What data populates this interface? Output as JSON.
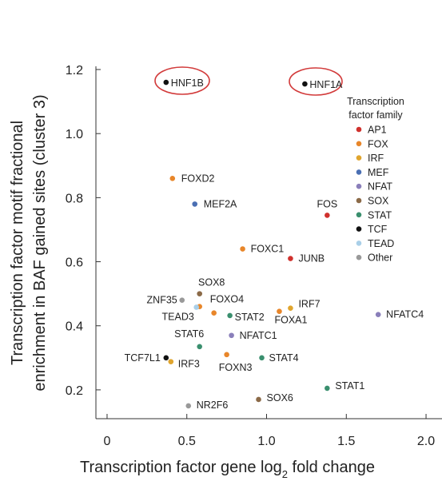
{
  "chart_data": {
    "type": "scatter",
    "xlabel_main": "Transcription factor gene log",
    "xlabel_sub": "2",
    "xlabel_tail": " fold change",
    "ylabel_line1": "Transcription factor motif fractional",
    "ylabel_line2": "enrichment in BAF gained sites (cluster 3)",
    "xlim": [
      -0.07,
      2.1
    ],
    "ylim": [
      0.11,
      1.21
    ],
    "x_ticks": [
      {
        "value": 0,
        "label": "0"
      },
      {
        "value": 0.5,
        "label": "0.5"
      },
      {
        "value": 1.0,
        "label": "1.0"
      },
      {
        "value": 1.5,
        "label": "1.5"
      },
      {
        "value": 2.0,
        "label": "2.0"
      }
    ],
    "y_ticks": [
      {
        "value": 0.2,
        "label": "0.2"
      },
      {
        "value": 0.4,
        "label": "0.4"
      },
      {
        "value": 0.6,
        "label": "0.6"
      },
      {
        "value": 0.8,
        "label": "0.8"
      },
      {
        "value": 1.0,
        "label": "1.0"
      },
      {
        "value": 1.2,
        "label": "1.2"
      }
    ],
    "legend": {
      "title_line1": "Transcription",
      "title_line2": "factor family",
      "position": "right",
      "entries": [
        {
          "family": "AP1",
          "color": "#d0312d"
        },
        {
          "family": "FOX",
          "color": "#e8862a"
        },
        {
          "family": "IRF",
          "color": "#e0a52e"
        },
        {
          "family": "MEF",
          "color": "#4a6fb3"
        },
        {
          "family": "NFAT",
          "color": "#8a7fba"
        },
        {
          "family": "SOX",
          "color": "#8b6a48"
        },
        {
          "family": "STAT",
          "color": "#3a8f6e"
        },
        {
          "family": "TCF",
          "color": "#111111"
        },
        {
          "family": "TEAD",
          "color": "#a9cfe8"
        },
        {
          "family": "Other",
          "color": "#999999"
        }
      ]
    },
    "points": [
      {
        "label": "HNF1B",
        "family": "TCF",
        "x": 0.37,
        "y": 1.16,
        "highlight": true
      },
      {
        "label": "HNF1A",
        "family": "TCF",
        "x": 1.24,
        "y": 1.155,
        "highlight": true
      },
      {
        "label": "FOXD2",
        "family": "FOX",
        "x": 0.41,
        "y": 0.86
      },
      {
        "label": "MEF2A",
        "family": "MEF",
        "x": 0.55,
        "y": 0.78
      },
      {
        "label": "FOS",
        "family": "AP1",
        "x": 1.38,
        "y": 0.745
      },
      {
        "label": "FOXC1",
        "family": "FOX",
        "x": 0.85,
        "y": 0.64
      },
      {
        "label": "JUNB",
        "family": "AP1",
        "x": 1.15,
        "y": 0.61
      },
      {
        "label": "SOX8",
        "family": "SOX",
        "x": 0.58,
        "y": 0.5
      },
      {
        "label": "ZNF35",
        "family": "Other",
        "x": 0.47,
        "y": 0.48
      },
      {
        "label": "FOXO4",
        "family": "FOX",
        "x": 0.58,
        "y": 0.46
      },
      {
        "label": "TEAD3",
        "family": "TEAD",
        "x": 0.56,
        "y": 0.458
      },
      {
        "label": "IRF7",
        "family": "IRF",
        "x": 1.15,
        "y": 0.455
      },
      {
        "label": "STAT2",
        "family": "STAT",
        "x": 0.77,
        "y": 0.432
      },
      {
        "label": "FOXA1",
        "family": "FOX",
        "x": 1.08,
        "y": 0.445
      },
      {
        "label": "NFATC4",
        "family": "NFAT",
        "x": 1.7,
        "y": 0.435
      },
      {
        "label": "STAT6",
        "family": "STAT",
        "x": 0.58,
        "y": 0.335
      },
      {
        "label": "NFATC1",
        "family": "NFAT",
        "x": 0.78,
        "y": 0.37
      },
      {
        "label": "FOXO4b",
        "family": "FOX",
        "x": 0.67,
        "y": 0.44,
        "unlabeled": true
      },
      {
        "label": "TCF7L1",
        "family": "TCF",
        "x": 0.37,
        "y": 0.3
      },
      {
        "label": "IRF3",
        "family": "IRF",
        "x": 0.4,
        "y": 0.288
      },
      {
        "label": "FOXN3",
        "family": "FOX",
        "x": 0.75,
        "y": 0.31
      },
      {
        "label": "STAT4",
        "family": "STAT",
        "x": 0.97,
        "y": 0.3
      },
      {
        "label": "STAT1",
        "family": "STAT",
        "x": 1.38,
        "y": 0.205
      },
      {
        "label": "SOX6",
        "family": "SOX",
        "x": 0.95,
        "y": 0.17
      },
      {
        "label": "NR2F6",
        "family": "Other",
        "x": 0.51,
        "y": 0.15
      }
    ]
  }
}
